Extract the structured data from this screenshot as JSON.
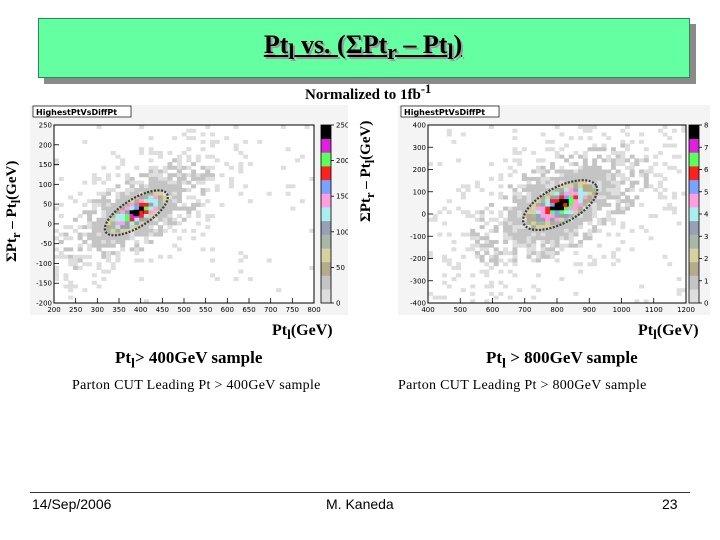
{
  "slide": {
    "title_html": "Pt<sub>l</sub> vs. (&Sigma;Pt<sub>r</sub> &ndash; Pt<sub>l</sub>)",
    "normalization_html": "Normalized to 1fb<sup>-1</sup>",
    "footer": {
      "date": "14/Sep/2006",
      "author": "M. Kaneda",
      "page": "23"
    }
  },
  "panels": [
    {
      "sample_html": "Pt<sub>l</sub>&gt; 400GeV sample",
      "cut_text": "Parton CUT  Leading Pt > 400GeV sample",
      "xlabel_html": "Pt<sub>l</sub>(GeV)",
      "ylabel_html": "&Sigma;Pt<sub>r</sub> &ndash; Pt<sub>l</sub>(GeV)"
    },
    {
      "sample_html": "Pt<sub>l</sub> &gt; 800GeV sample",
      "cut_text": "Parton CUT  Leading Pt > 800GeV sample",
      "xlabel_html": "Pt<sub>l</sub>(GeV)",
      "ylabel_html": "&Sigma;Pt<sub>r</sub> &ndash; Pt<sub>l</sub>(GeV)"
    }
  ],
  "chart_data": [
    {
      "type": "heatmap",
      "title": "HighestPtVsDiffPt",
      "xlim": [
        200,
        800
      ],
      "ylim": [
        -200,
        250
      ],
      "x_ticks": [
        200,
        250,
        300,
        350,
        400,
        450,
        500,
        550,
        600,
        650,
        700,
        750,
        800
      ],
      "y_ticks": [
        -200,
        -150,
        -100,
        -50,
        0,
        50,
        100,
        150,
        200,
        250
      ],
      "z_ticks": [
        0,
        50,
        100,
        150,
        200,
        250
      ],
      "z_max": 250,
      "colorscale": [
        "#f5f5f5",
        "#dedede",
        "#c4c4c4",
        "#b4ab8c",
        "#d8d0a0",
        "#a8b8a8",
        "#98a0b8",
        "#a8f0f0",
        "#ff9fe0",
        "#7aa2ff",
        "#ff2020",
        "#5aff5a",
        "#e020e0",
        "#000000"
      ],
      "peak": {
        "x": 390,
        "y": 28
      },
      "core": {
        "sx": 42,
        "sy": 14,
        "angle": -32
      },
      "grid": false,
      "legend": "colorbar-right"
    },
    {
      "type": "heatmap",
      "title": "HighestPtVsDiffPt",
      "xlim": [
        400,
        1200
      ],
      "ylim": [
        -400,
        400
      ],
      "x_ticks": [
        400,
        500,
        600,
        700,
        800,
        900,
        1000,
        1100,
        1200
      ],
      "y_ticks": [
        -400,
        -300,
        -200,
        -100,
        0,
        100,
        200,
        300,
        400
      ],
      "z_ticks": [
        0,
        1,
        2,
        3,
        4,
        5,
        6,
        7,
        8
      ],
      "z_max": 8,
      "colorscale": [
        "#f5f5f5",
        "#dedede",
        "#c4c4c4",
        "#b4ab8c",
        "#d8d0a0",
        "#a8b8a8",
        "#98a0b8",
        "#a8f0f0",
        "#ff9fe0",
        "#7aa2ff",
        "#ff2020",
        "#5aff5a",
        "#e020e0",
        "#000000"
      ],
      "peak": {
        "x": 810,
        "y": 40
      },
      "core": {
        "sx": 48,
        "sy": 18,
        "angle": -28
      },
      "grid": false,
      "legend": "colorbar-right"
    }
  ]
}
